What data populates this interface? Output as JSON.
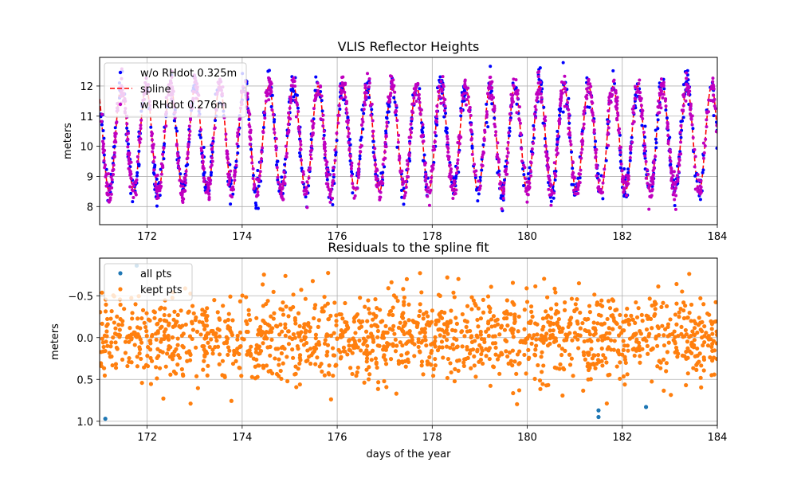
{
  "chart_data": [
    {
      "type": "scatter",
      "title": "VLIS Reflector Heights",
      "xlabel": "",
      "ylabel": "meters",
      "xlim": [
        171.0,
        184.0
      ],
      "ylim": [
        12.95,
        7.4
      ],
      "y_inverted": true,
      "xticks": [
        172,
        174,
        176,
        178,
        180,
        182,
        184
      ],
      "yticks": [
        8,
        9,
        10,
        11,
        12
      ],
      "grid": true,
      "legend_position": "upper-left",
      "tide_model": {
        "mean": 10.25,
        "amplitude": 1.75,
        "period_days": 0.5175,
        "peak_time": 171.2
      },
      "series": [
        {
          "name": "w/o RHdot 0.325m",
          "kind": "points",
          "color": "#0000ff",
          "count": 900,
          "noise_sd": 0.28,
          "seed": 11
        },
        {
          "name": "spline",
          "kind": "dashed-line",
          "color": "#ff0000"
        },
        {
          "name": "w RHdot 0.276m",
          "kind": "points",
          "color": "#bf00bf",
          "count": 1600,
          "noise_sd": 0.22,
          "seed": 23
        }
      ]
    },
    {
      "type": "scatter",
      "title": "Residuals to the spline fit",
      "xlabel": "days of the year",
      "ylabel": "meters",
      "xlim": [
        171.0,
        184.0
      ],
      "ylim": [
        -0.95,
        1.05
      ],
      "xticks": [
        172,
        174,
        176,
        178,
        180,
        182,
        184
      ],
      "yticks": [
        -0.5,
        0.0,
        0.5,
        1.0
      ],
      "ytick_labels": [
        "−0.5",
        "0.0",
        "0.5",
        "1.0"
      ],
      "grid": true,
      "legend_position": "upper-left",
      "series": [
        {
          "name": "all pts",
          "color": "#1f77b4",
          "outliers": [
            [
              171.12,
              0.97
            ],
            [
              171.78,
              -0.86
            ],
            [
              181.5,
              0.95
            ],
            [
              181.5,
              0.87
            ],
            [
              182.5,
              0.83
            ]
          ]
        },
        {
          "name": "kept pts",
          "color": "#ff7f0e",
          "count": 1500,
          "noise_sd": 0.26,
          "clip": 0.8,
          "seed": 37
        }
      ]
    }
  ]
}
